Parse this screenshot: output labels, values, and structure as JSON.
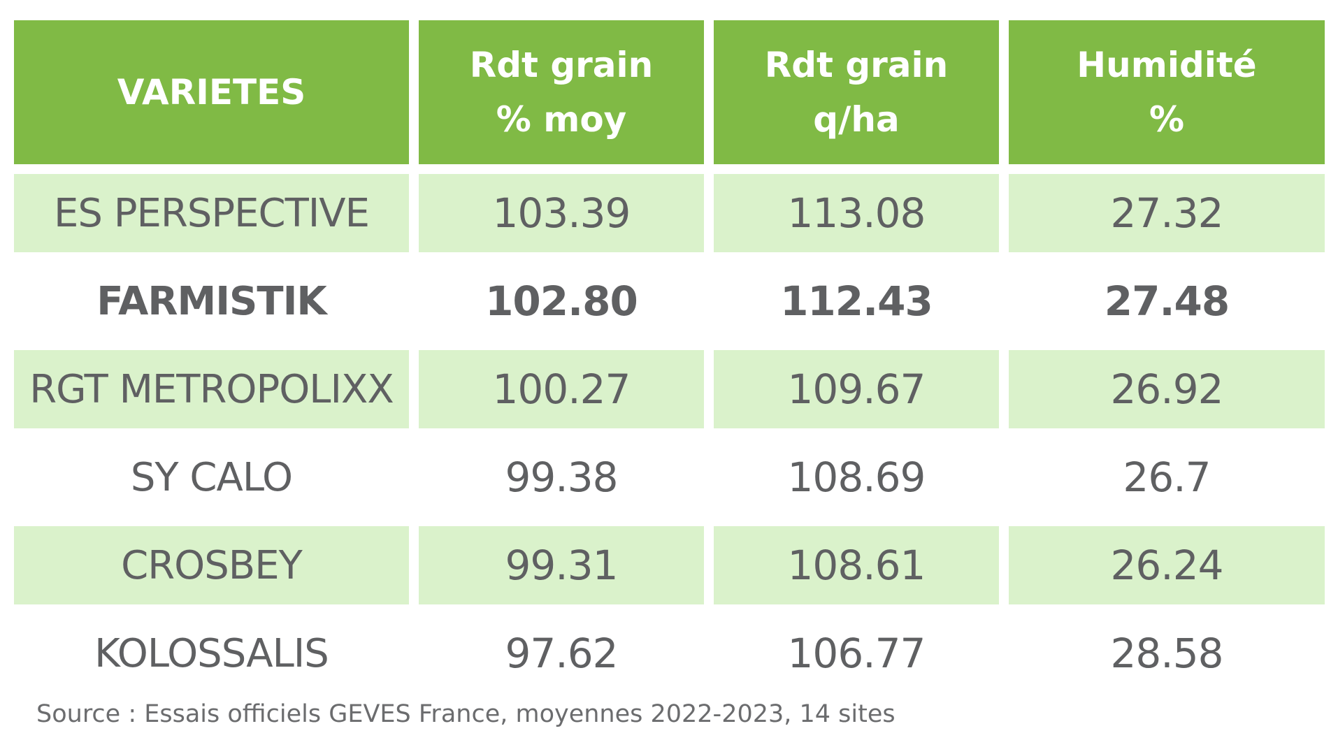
{
  "colors": {
    "header_bg": "#80ba45",
    "shaded_row_bg": "#daf2cb",
    "plain_row_bg": "#ffffff",
    "text": "#5f6062",
    "header_text": "#ffffff"
  },
  "chart_data": {
    "type": "table",
    "columns": [
      {
        "line1": "VARIETES",
        "line2": ""
      },
      {
        "line1": "Rdt grain",
        "line2": "% moy"
      },
      {
        "line1": "Rdt grain",
        "line2": "q/ha"
      },
      {
        "line1": "Humidité",
        "line2": "%"
      }
    ],
    "rows": [
      {
        "variety": "ES PERSPECTIVE",
        "rdt_pct_moy": "103.39",
        "rdt_q_ha": "113.08",
        "humidite": "27.32",
        "shaded": true,
        "bold": false
      },
      {
        "variety": "FARMISTIK",
        "rdt_pct_moy": "102.80",
        "rdt_q_ha": "112.43",
        "humidite": "27.48",
        "shaded": false,
        "bold": true
      },
      {
        "variety": "RGT METROPOLIXX",
        "rdt_pct_moy": "100.27",
        "rdt_q_ha": "109.67",
        "humidite": "26.92",
        "shaded": true,
        "bold": false
      },
      {
        "variety": "SY CALO",
        "rdt_pct_moy": "99.38",
        "rdt_q_ha": "108.69",
        "humidite": "26.7",
        "shaded": false,
        "bold": false
      },
      {
        "variety": "CROSBEY",
        "rdt_pct_moy": "99.31",
        "rdt_q_ha": "108.61",
        "humidite": "26.24",
        "shaded": true,
        "bold": false
      },
      {
        "variety": "KOLOSSALIS",
        "rdt_pct_moy": "97.62",
        "rdt_q_ha": "106.77",
        "humidite": "28.58",
        "shaded": false,
        "bold": false
      }
    ],
    "source": "Source : Essais officiels GEVES France, moyennes 2022-2023, 14 sites"
  }
}
